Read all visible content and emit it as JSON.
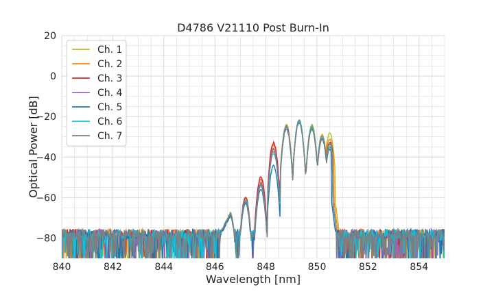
{
  "chart_data": {
    "type": "line",
    "title": "D4786 V21110 Post Burn-In",
    "xlabel": "Wavelength [nm]",
    "ylabel": "Optical Power [dB]",
    "xlim": [
      840,
      855
    ],
    "ylim": [
      -90,
      20
    ],
    "xticks": [
      840,
      842,
      844,
      846,
      848,
      850,
      852,
      854
    ],
    "yticks": [
      20,
      0,
      -20,
      -40,
      -60,
      -80
    ],
    "grid": true,
    "legend_position": "top-left",
    "noise_floor_db": -78,
    "series": [
      {
        "name": "Ch. 1",
        "color": "#bcbd22",
        "peaks": [
          [
            846.6,
            -68
          ],
          [
            847.2,
            -61
          ],
          [
            847.8,
            -53
          ],
          [
            848.3,
            -36
          ],
          [
            848.8,
            -24
          ],
          [
            849.3,
            -22
          ],
          [
            849.8,
            -24
          ],
          [
            850.2,
            -29
          ],
          [
            850.5,
            -28
          ]
        ],
        "edge": 850.7
      },
      {
        "name": "Ch. 2",
        "color": "#ff7f0e",
        "peaks": [
          [
            846.6,
            -68
          ],
          [
            847.2,
            -60
          ],
          [
            847.8,
            -51
          ],
          [
            848.3,
            -34
          ],
          [
            848.8,
            -24
          ],
          [
            849.3,
            -22
          ],
          [
            849.8,
            -25
          ],
          [
            850.2,
            -29
          ],
          [
            850.5,
            -31
          ]
        ],
        "edge": 850.65
      },
      {
        "name": "Ch. 3",
        "color": "#d62728",
        "peaks": [
          [
            846.6,
            -68
          ],
          [
            847.2,
            -60
          ],
          [
            847.8,
            -50
          ],
          [
            848.3,
            -33
          ],
          [
            848.8,
            -25
          ],
          [
            849.3,
            -22
          ],
          [
            849.8,
            -26
          ],
          [
            850.2,
            -31
          ],
          [
            850.5,
            -33
          ]
        ],
        "edge": 850.6
      },
      {
        "name": "Ch. 4",
        "color": "#9467bd",
        "peaks": [
          [
            846.6,
            -68
          ],
          [
            847.2,
            -62
          ],
          [
            847.8,
            -53
          ],
          [
            848.3,
            -36
          ],
          [
            848.8,
            -25
          ],
          [
            849.3,
            -22
          ],
          [
            849.8,
            -26
          ],
          [
            850.2,
            -31
          ],
          [
            850.5,
            -35
          ]
        ],
        "edge": 850.6
      },
      {
        "name": "Ch. 5",
        "color": "#1f77b4",
        "peaks": [
          [
            846.6,
            -69
          ],
          [
            847.2,
            -63
          ],
          [
            847.8,
            -56
          ],
          [
            848.3,
            -44
          ],
          [
            848.8,
            -26
          ],
          [
            849.3,
            -22
          ],
          [
            849.8,
            -26
          ],
          [
            850.2,
            -31
          ],
          [
            850.5,
            -36
          ]
        ],
        "edge": 850.55
      },
      {
        "name": "Ch. 6",
        "color": "#17becf",
        "peaks": [
          [
            846.6,
            -68
          ],
          [
            847.2,
            -61
          ],
          [
            847.8,
            -54
          ],
          [
            848.3,
            -38
          ],
          [
            848.8,
            -25
          ],
          [
            849.3,
            -22
          ],
          [
            849.8,
            -25
          ],
          [
            850.2,
            -30
          ],
          [
            850.5,
            -34
          ]
        ],
        "edge": 850.6
      },
      {
        "name": "Ch. 7",
        "color": "#7f7f7f",
        "peaks": [
          [
            846.6,
            -68
          ],
          [
            847.2,
            -62
          ],
          [
            847.8,
            -54
          ],
          [
            848.3,
            -37
          ],
          [
            848.8,
            -25
          ],
          [
            849.3,
            -23
          ],
          [
            849.8,
            -26
          ],
          [
            850.2,
            -31
          ],
          [
            850.5,
            -36
          ]
        ],
        "edge": 850.6
      }
    ]
  }
}
